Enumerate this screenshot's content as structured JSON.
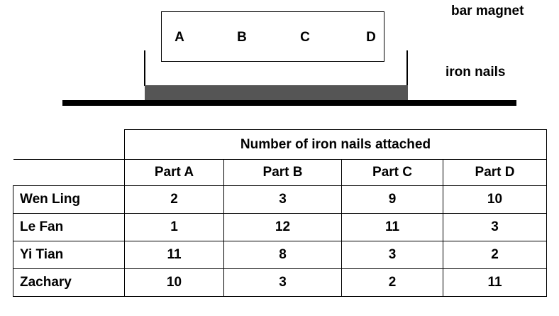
{
  "diagram": {
    "magnet_label": "bar magnet",
    "nails_label": "iron nails",
    "magnet_parts": [
      "A",
      "B",
      "C",
      "D"
    ]
  },
  "table": {
    "group_header": "Number of iron nails attached",
    "columns": [
      "Part A",
      "Part B",
      "Part C",
      "Part D"
    ],
    "rows": [
      {
        "name": "Wen Ling",
        "values": [
          "2",
          "3",
          "9",
          "10"
        ]
      },
      {
        "name": "Le Fan",
        "values": [
          "1",
          "12",
          "11",
          "3"
        ]
      },
      {
        "name": "Yi Tian",
        "values": [
          "11",
          "8",
          "3",
          "2"
        ]
      },
      {
        "name": "Zachary",
        "values": [
          "10",
          "3",
          "2",
          "11"
        ]
      }
    ]
  }
}
